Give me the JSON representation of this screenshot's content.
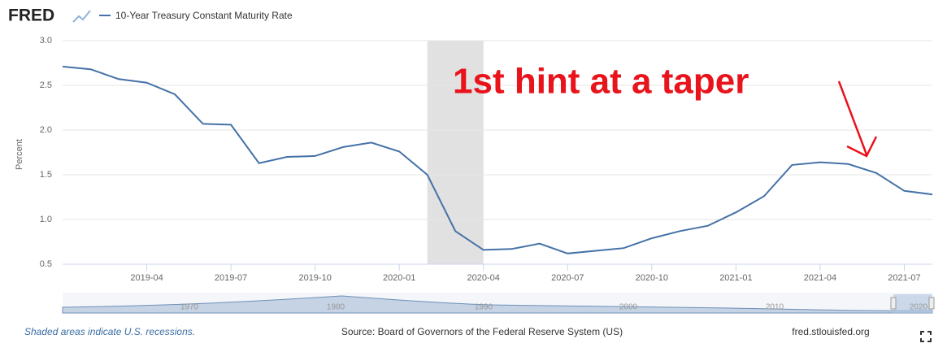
{
  "brand": "FRED",
  "chart_data": {
    "type": "line",
    "series": [
      {
        "name": "10-Year Treasury Constant Maturity Rate",
        "color": "#4572a7",
        "values": [
          2.71,
          2.68,
          2.57,
          2.53,
          2.4,
          2.07,
          2.06,
          1.63,
          1.7,
          1.71,
          1.81,
          1.86,
          1.76,
          1.5,
          0.87,
          0.66,
          0.67,
          0.73,
          0.62,
          0.65,
          0.68,
          0.79,
          0.87,
          0.93,
          1.08,
          1.26,
          1.61,
          1.64,
          1.62,
          1.52,
          1.32,
          1.28
        ]
      }
    ],
    "x": [
      "2019-01",
      "2019-02",
      "2019-03",
      "2019-04",
      "2019-05",
      "2019-06",
      "2019-07",
      "2019-08",
      "2019-09",
      "2019-10",
      "2019-11",
      "2019-12",
      "2020-01",
      "2020-02",
      "2020-03",
      "2020-04",
      "2020-05",
      "2020-06",
      "2020-07",
      "2020-08",
      "2020-09",
      "2020-10",
      "2020-11",
      "2020-12",
      "2021-01",
      "2021-02",
      "2021-03",
      "2021-04",
      "2021-05",
      "2021-06",
      "2021-07",
      "2021-08"
    ],
    "xlim": [
      "2019-01",
      "2021-08"
    ],
    "xticks": [
      "2019-04",
      "2019-07",
      "2019-10",
      "2020-01",
      "2020-04",
      "2020-07",
      "2020-10",
      "2021-01",
      "2021-04",
      "2021-07"
    ],
    "ylabel": "Percent",
    "ylim": [
      0.5,
      3.0
    ],
    "yticks": [
      0.5,
      {
        "value": 1,
        "label": "1.0"
      },
      1.5,
      {
        "value": 2,
        "label": "2.0"
      },
      2.5,
      {
        "value": 3,
        "label": "3.0"
      }
    ],
    "grid": true,
    "recession": [
      "2020-02",
      "2020-04"
    ],
    "annotation": "1st hint at a taper",
    "annotation_color": "#e8131b"
  },
  "navigator_labels": [
    "1970",
    "1980",
    "1990",
    "2000",
    "2010",
    "2020"
  ],
  "footer": {
    "note": "Shaded areas indicate U.S. recessions.",
    "source": "Source: Board of Governors of the Federal Reserve System (US)",
    "site": "fred.stlouisfed.org"
  }
}
